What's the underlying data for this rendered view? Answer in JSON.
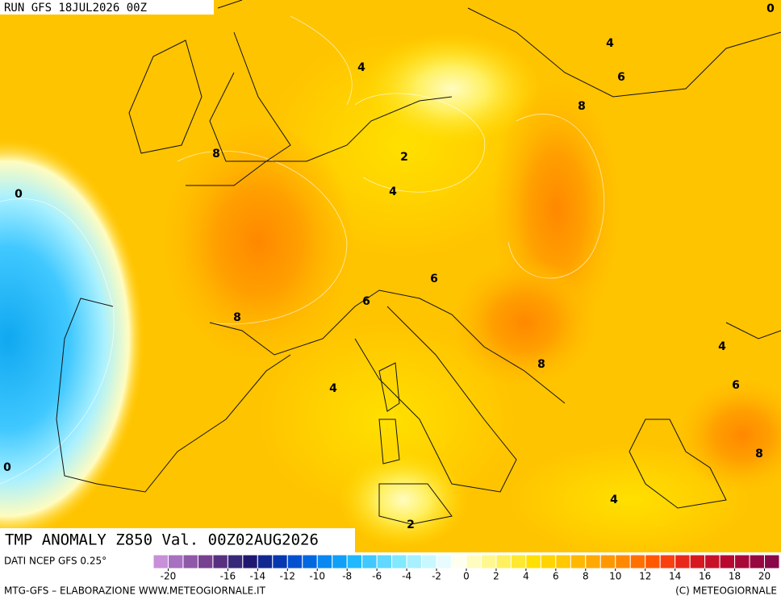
{
  "header": {
    "run": "RUN GFS 18JUL2026 00Z",
    "corner": "0"
  },
  "map": {
    "contour_labels": [
      "0",
      "4",
      "4",
      "6",
      "8",
      "8",
      "2",
      "4",
      "8",
      "6",
      "6",
      "8",
      "4",
      "4",
      "6",
      "8",
      "0",
      "4",
      "2"
    ]
  },
  "title": "TMP ANOMALY Z850 Val. 00Z02AUG2026",
  "source": "DATI NCEP GFS 0.25°",
  "colorbar": {
    "lim": [
      -21,
      21
    ],
    "colors": [
      "#c890d8",
      "#a870c0",
      "#9058a8",
      "#784090",
      "#583080",
      "#382878",
      "#201870",
      "#102890",
      "#0838b0",
      "#0050d0",
      "#0068e0",
      "#0888f0",
      "#10a0f8",
      "#20b8ff",
      "#40c8ff",
      "#60d8ff",
      "#80e8ff",
      "#a8f0ff",
      "#c8f8ff",
      "#e8fcff",
      "#fffff0",
      "#fffcc0",
      "#fff890",
      "#fff060",
      "#ffe830",
      "#ffe000",
      "#ffd400",
      "#ffc800",
      "#ffb800",
      "#ffa800",
      "#ff9800",
      "#ff8800",
      "#ff7000",
      "#ff5800",
      "#f84010",
      "#e82818",
      "#d81820",
      "#c81028",
      "#b80830",
      "#a80838",
      "#980840",
      "#880848"
    ],
    "ticks": [
      -20,
      -16,
      -14,
      -12,
      -10,
      -8,
      -6,
      -4,
      -2,
      0,
      2,
      4,
      6,
      8,
      10,
      12,
      14,
      16,
      18,
      20
    ]
  },
  "footer": {
    "left": "MTG-GFS – ELABORAZIONE WWW.METEOGIORNALE.IT",
    "right": "(C) METEOGIORNALE"
  }
}
